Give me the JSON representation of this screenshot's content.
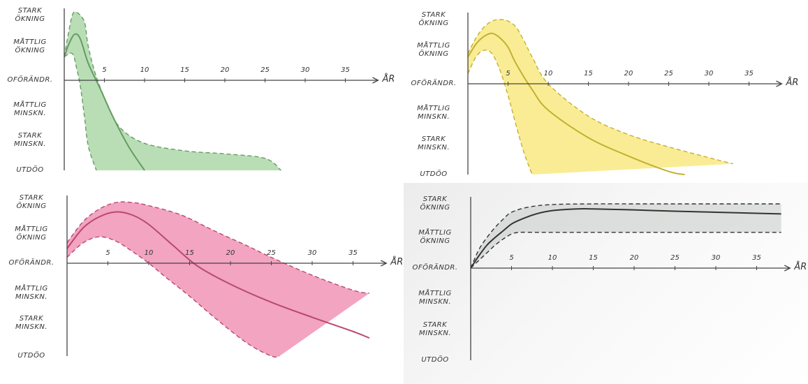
{
  "y_levels": [
    "STARK\nÖKNING",
    "MÅTTLIG\nÖKNING",
    "OFÖRÄNDR.",
    "MÅTTLIG\nMINSKN.",
    "STARK\nMINSKN.",
    "UTDÖO"
  ],
  "x_axis_label": "ÅR",
  "chart_data": [
    {
      "type": "area",
      "position": "top-left",
      "color": "#7fc27a",
      "ylim": [
        -3,
        2
      ],
      "y_scale": "categorical: 2=stark ökning, 1=måttlig ökning, 0=oförändr., -1=måttlig minskn., -2=stark minskn., -3=utdöo",
      "x_ticks": [
        5,
        10,
        15,
        20,
        25,
        30,
        35
      ],
      "series": [
        {
          "role": "central",
          "x": [
            0,
            0.6,
            1.3,
            2,
            3,
            4.5,
            6,
            8,
            10
          ],
          "y": [
            0.7,
            1.1,
            1.4,
            1.25,
            0.5,
            -0.3,
            -1.2,
            -2.2,
            -3
          ]
        },
        {
          "role": "upper",
          "x": [
            0,
            0.5,
            1,
            1.5,
            2.5,
            3,
            4,
            5.5,
            7,
            10,
            15,
            20,
            25,
            27
          ],
          "y": [
            0.7,
            1.4,
            2.0,
            2.1,
            1.8,
            1.0,
            0.1,
            -0.9,
            -1.6,
            -2.1,
            -2.35,
            -2.45,
            -2.6,
            -3
          ]
        },
        {
          "role": "lower",
          "x": [
            0,
            1,
            1.5,
            2,
            2.5,
            3,
            4
          ],
          "y": [
            0.7,
            0.8,
            0.4,
            -0.2,
            -1.2,
            -2.2,
            -3
          ]
        }
      ]
    },
    {
      "type": "area",
      "position": "top-right",
      "color": "#f4dc3c",
      "ylim": [
        -3,
        2
      ],
      "y_scale": "categorical",
      "x_ticks": [
        5,
        10,
        15,
        20,
        25,
        30,
        35
      ],
      "series": [
        {
          "role": "central",
          "x": [
            0,
            1,
            2,
            3,
            4,
            5,
            6,
            8,
            10,
            15,
            20,
            25,
            27
          ],
          "y": [
            0.8,
            1.2,
            1.45,
            1.55,
            1.4,
            1.1,
            0.6,
            -0.2,
            -0.9,
            -1.8,
            -2.4,
            -2.9,
            -3
          ]
        },
        {
          "role": "upper",
          "x": [
            0,
            1,
            2,
            3,
            4,
            5,
            6,
            7,
            8,
            10,
            15,
            20,
            25,
            30,
            33
          ],
          "y": [
            0.9,
            1.4,
            1.75,
            1.95,
            2.0,
            1.95,
            1.75,
            1.3,
            0.8,
            0.0,
            -1.1,
            -1.7,
            -2.1,
            -2.45,
            -2.65
          ]
        },
        {
          "role": "lower",
          "x": [
            0,
            1,
            2,
            3,
            4,
            5,
            6,
            7,
            8
          ],
          "y": [
            0.3,
            0.8,
            1.0,
            0.9,
            0.4,
            -0.4,
            -1.4,
            -2.3,
            -3
          ]
        }
      ]
    },
    {
      "type": "area",
      "position": "bottom-left",
      "color": "#e75a8d",
      "ylim": [
        -3,
        2
      ],
      "y_scale": "categorical",
      "x_ticks": [
        5,
        10,
        15,
        20,
        25,
        30,
        35
      ],
      "series": [
        {
          "role": "central",
          "x": [
            0,
            2,
            4,
            6,
            8,
            10,
            13,
            16,
            20,
            25,
            30,
            35,
            37
          ],
          "y": [
            0.5,
            1.2,
            1.55,
            1.7,
            1.6,
            1.3,
            0.6,
            -0.1,
            -0.7,
            -1.3,
            -1.8,
            -2.25,
            -2.45
          ]
        },
        {
          "role": "upper",
          "x": [
            0,
            2,
            4,
            6,
            8,
            10,
            14,
            18,
            22,
            25,
            30,
            35,
            37
          ],
          "y": [
            0.7,
            1.4,
            1.8,
            2.0,
            2.0,
            1.9,
            1.6,
            1.1,
            0.6,
            0.2,
            -0.4,
            -0.9,
            -1.0
          ]
        },
        {
          "role": "lower",
          "x": [
            0,
            2,
            4,
            6,
            8,
            10,
            12,
            15,
            18,
            22,
            25,
            26
          ],
          "y": [
            0.2,
            0.7,
            0.9,
            0.75,
            0.4,
            0.0,
            -0.45,
            -1.1,
            -1.8,
            -2.6,
            -3.0,
            -3.0
          ]
        }
      ]
    },
    {
      "type": "area",
      "position": "bottom-right",
      "color": "#c4cac7",
      "ylim": [
        -3,
        2
      ],
      "y_scale": "categorical",
      "x_ticks": [
        5,
        10,
        15,
        20,
        25,
        30,
        35
      ],
      "series": [
        {
          "role": "central",
          "x": [
            0,
            1,
            2,
            3,
            4,
            5,
            6,
            8,
            10,
            13,
            15,
            20,
            25,
            30,
            35,
            38
          ],
          "y": [
            0,
            0.4,
            0.75,
            1.0,
            1.2,
            1.4,
            1.52,
            1.7,
            1.8,
            1.85,
            1.85,
            1.82,
            1.78,
            1.75,
            1.72,
            1.7
          ]
        },
        {
          "role": "upper",
          "x": [
            0,
            1,
            2,
            3,
            4,
            5,
            7,
            10,
            15,
            20,
            25,
            30,
            35,
            38
          ],
          "y": [
            0,
            0.6,
            1.0,
            1.3,
            1.55,
            1.75,
            1.9,
            1.98,
            2.0,
            2.0,
            2.0,
            2.0,
            2.0,
            2.0
          ]
        },
        {
          "role": "lower",
          "x": [
            0,
            1,
            2,
            3,
            4,
            5,
            6,
            8,
            10,
            15,
            20,
            25,
            30,
            35,
            38
          ],
          "y": [
            0,
            0.25,
            0.5,
            0.75,
            0.95,
            1.1,
            1.15,
            1.15,
            1.15,
            1.15,
            1.15,
            1.15,
            1.15,
            1.15,
            1.15
          ]
        }
      ]
    }
  ]
}
